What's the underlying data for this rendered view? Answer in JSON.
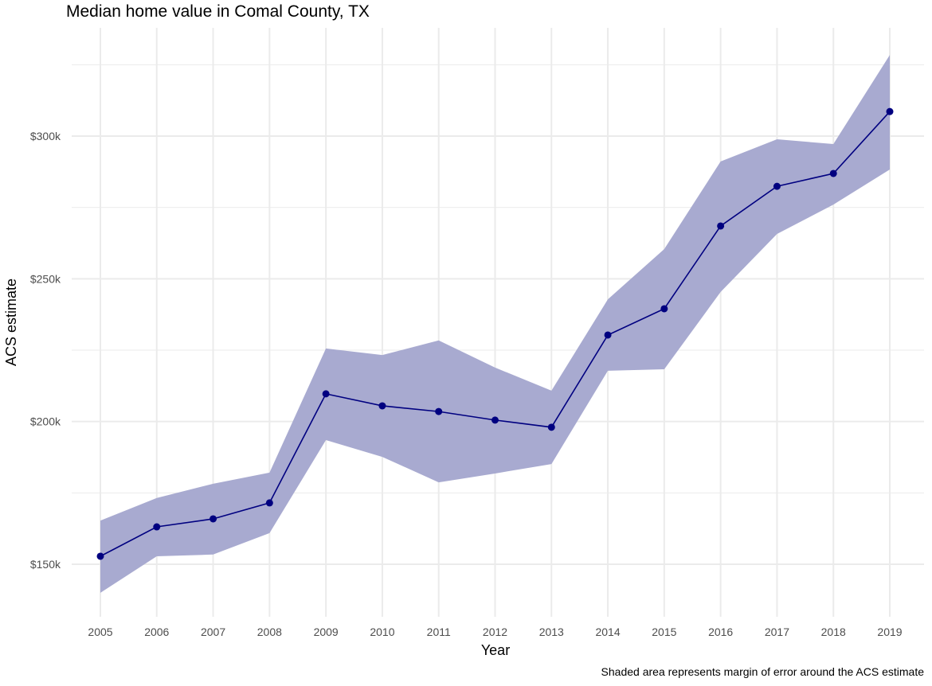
{
  "chart_data": {
    "type": "line",
    "title": "Median home value in Comal County, TX",
    "xlabel": "Year",
    "ylabel": "ACS estimate",
    "caption": "Shaded area represents margin of error around the ACS estimate",
    "x": [
      2005,
      2006,
      2007,
      2008,
      2009,
      2010,
      2011,
      2012,
      2013,
      2014,
      2015,
      2016,
      2017,
      2018,
      2019
    ],
    "x_tick_labels": [
      "2005",
      "2006",
      "2007",
      "2008",
      "2009",
      "2010",
      "2011",
      "2012",
      "2013",
      "2014",
      "2015",
      "2016",
      "2017",
      "2018",
      "2019"
    ],
    "y_ticks": [
      150000,
      200000,
      250000,
      300000
    ],
    "y_tick_labels": [
      "$150k",
      "$200k",
      "$250k",
      "$300k"
    ],
    "ylim": [
      131000,
      338000
    ],
    "grid": true,
    "series": [
      {
        "values": [
          152800,
          163100,
          165900,
          171500,
          209700,
          205500,
          203500,
          200500,
          198000,
          230300,
          239500,
          268500,
          282400,
          286900,
          308600
        ],
        "lower": [
          140000,
          152800,
          153400,
          160900,
          193500,
          187600,
          178700,
          181800,
          185100,
          217800,
          218300,
          245400,
          265700,
          276000,
          288300
        ],
        "upper": [
          165300,
          173200,
          178200,
          182100,
          225600,
          223300,
          228400,
          218900,
          210800,
          242800,
          260400,
          291100,
          298900,
          297200,
          328400
        ]
      }
    ],
    "colors": {
      "line": "#000080",
      "ribbon": "#a8aad0",
      "grid": "#ebebeb",
      "text": "#4d4d4d"
    }
  }
}
